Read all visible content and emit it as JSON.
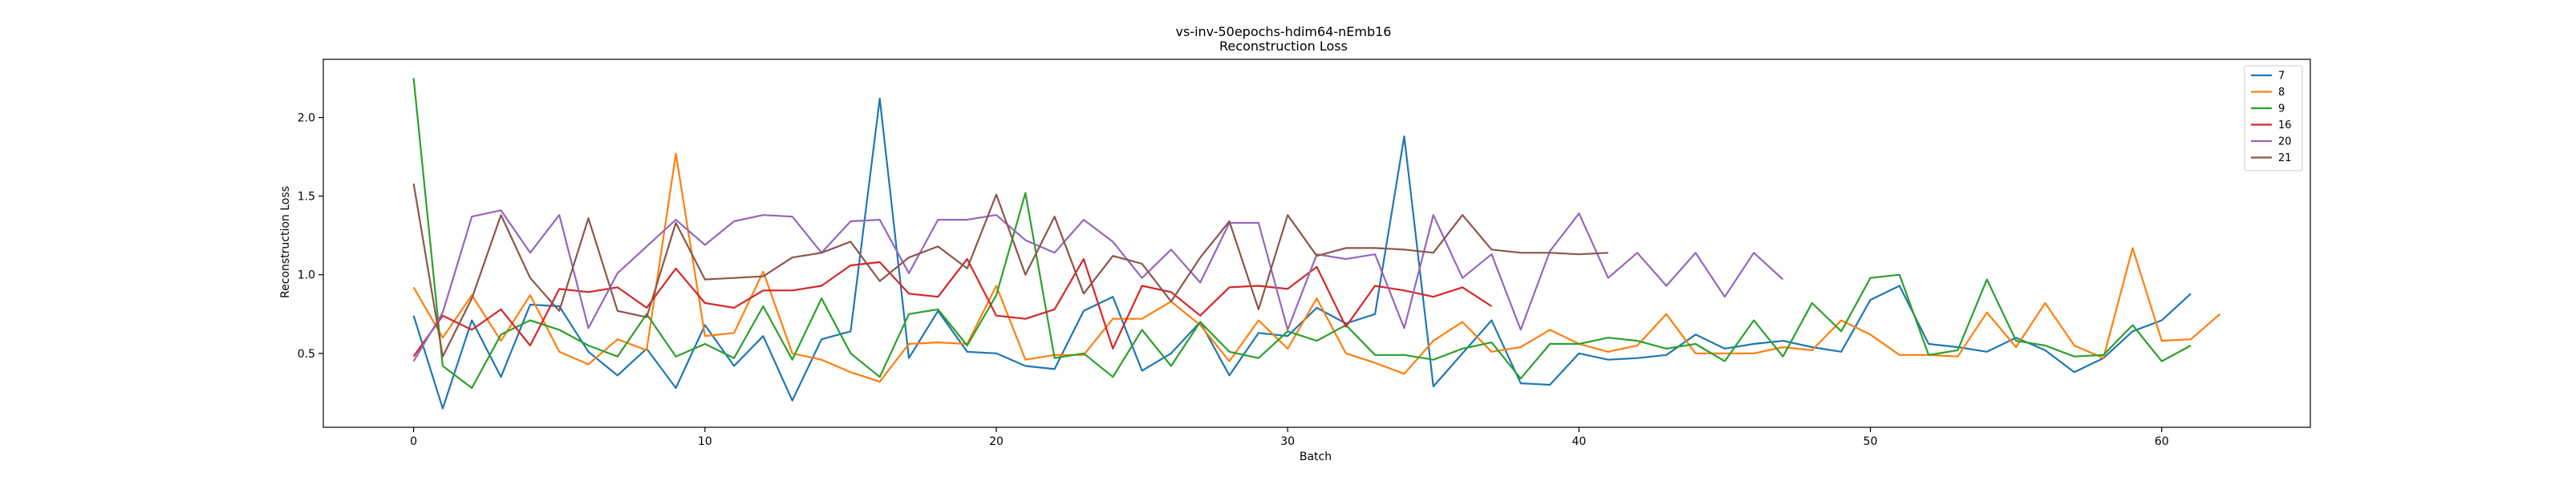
{
  "chart_data": {
    "type": "line",
    "title": "vs-inv-50epochs-hdim64-nEmb16",
    "subtitle": "Reconstruction Loss",
    "xlabel": "Batch",
    "ylabel": "Reconstruction Loss",
    "xlim": [
      -3.1,
      65.1
    ],
    "ylim": [
      0.03,
      2.37
    ],
    "xticks": [
      0,
      10,
      20,
      30,
      40,
      50,
      60
    ],
    "yticks": [
      0.5,
      1.0,
      1.5,
      2.0
    ],
    "ytick_labels": [
      "0.5",
      "1.0",
      "1.5",
      "2.0"
    ],
    "grid": false,
    "legend_position": "top-right",
    "series": [
      {
        "name": "7",
        "color": "#1f77b4",
        "values": [
          0.74,
          0.15,
          0.71,
          0.35,
          0.81,
          0.8,
          0.51,
          0.36,
          0.53,
          0.28,
          0.68,
          0.42,
          0.61,
          0.2,
          0.59,
          0.64,
          2.12,
          0.47,
          0.77,
          0.51,
          0.5,
          0.42,
          0.4,
          0.77,
          0.86,
          0.39,
          0.5,
          0.7,
          0.36,
          0.63,
          0.61,
          0.79,
          0.69,
          0.75,
          1.88,
          0.29,
          0.5,
          0.71,
          0.31,
          0.3,
          0.5,
          0.46,
          0.47,
          0.49,
          0.62,
          0.53,
          0.56,
          0.58,
          0.54,
          0.51,
          0.84,
          0.93,
          0.56,
          0.54,
          0.51,
          0.6,
          0.52,
          0.38,
          0.47,
          0.64,
          0.71,
          0.88
        ]
      },
      {
        "name": "8",
        "color": "#ff7f0e",
        "values": [
          0.92,
          0.6,
          0.87,
          0.58,
          0.87,
          0.51,
          0.43,
          0.59,
          0.52,
          1.77,
          0.61,
          0.63,
          1.02,
          0.5,
          0.46,
          0.38,
          0.32,
          0.56,
          0.57,
          0.56,
          0.93,
          0.46,
          0.49,
          0.49,
          0.72,
          0.72,
          0.83,
          0.68,
          0.45,
          0.71,
          0.53,
          0.85,
          0.5,
          0.44,
          0.37,
          0.58,
          0.7,
          0.51,
          0.54,
          0.65,
          0.56,
          0.51,
          0.55,
          0.75,
          0.5,
          0.5,
          0.5,
          0.54,
          0.52,
          0.71,
          0.62,
          0.49,
          0.49,
          0.48,
          0.76,
          0.54,
          0.82,
          0.55,
          0.47,
          1.17,
          0.58,
          0.59,
          0.75
        ]
      },
      {
        "name": "9",
        "color": "#2ca02c",
        "values": [
          2.25,
          0.42,
          0.28,
          0.62,
          0.71,
          0.65,
          0.55,
          0.48,
          0.75,
          0.48,
          0.56,
          0.47,
          0.8,
          0.46,
          0.85,
          0.5,
          0.35,
          0.75,
          0.78,
          0.55,
          0.87,
          1.52,
          0.47,
          0.5,
          0.35,
          0.65,
          0.42,
          0.7,
          0.51,
          0.47,
          0.64,
          0.58,
          0.68,
          0.49,
          0.49,
          0.46,
          0.53,
          0.57,
          0.34,
          0.56,
          0.56,
          0.6,
          0.58,
          0.53,
          0.56,
          0.45,
          0.71,
          0.48,
          0.82,
          0.64,
          0.98,
          1.0,
          0.49,
          0.52,
          0.97,
          0.58,
          0.55,
          0.48,
          0.49,
          0.68,
          0.45,
          0.55
        ]
      },
      {
        "name": "16",
        "color": "#d62728",
        "values": [
          0.48,
          0.74,
          0.65,
          0.78,
          0.55,
          0.91,
          0.89,
          0.92,
          0.79,
          1.04,
          0.82,
          0.79,
          0.9,
          0.9,
          0.93,
          1.06,
          1.08,
          0.88,
          0.86,
          1.1,
          0.74,
          0.72,
          0.78,
          1.1,
          0.53,
          0.93,
          0.89,
          0.74,
          0.92,
          0.93,
          0.91,
          1.05,
          0.67,
          0.93,
          0.9,
          0.86,
          0.92,
          0.8
        ]
      },
      {
        "name": "20",
        "color": "#9467bd",
        "values": [
          0.45,
          0.76,
          1.37,
          1.41,
          1.14,
          1.38,
          0.66,
          1.01,
          1.18,
          1.35,
          1.19,
          1.34,
          1.38,
          1.37,
          1.14,
          1.34,
          1.35,
          1.01,
          1.35,
          1.35,
          1.38,
          1.22,
          1.14,
          1.35,
          1.21,
          0.98,
          1.16,
          0.95,
          1.33,
          1.33,
          0.65,
          1.13,
          1.1,
          1.13,
          0.66,
          1.38,
          0.98,
          1.13,
          0.65,
          1.15,
          1.39,
          0.98,
          1.14,
          0.93,
          1.14,
          0.86,
          1.14,
          0.97
        ]
      },
      {
        "name": "21",
        "color": "#8c564b",
        "values": [
          1.58,
          0.48,
          0.85,
          1.38,
          0.98,
          0.77,
          1.36,
          0.77,
          0.73,
          1.33,
          0.97,
          0.98,
          0.99,
          1.11,
          1.14,
          1.21,
          0.96,
          1.11,
          1.18,
          1.04,
          1.51,
          1.0,
          1.37,
          0.88,
          1.12,
          1.07,
          0.83,
          1.11,
          1.34,
          0.78,
          1.38,
          1.12,
          1.17,
          1.17,
          1.16,
          1.14,
          1.38,
          1.16,
          1.14,
          1.14,
          1.13,
          1.14
        ]
      }
    ]
  }
}
